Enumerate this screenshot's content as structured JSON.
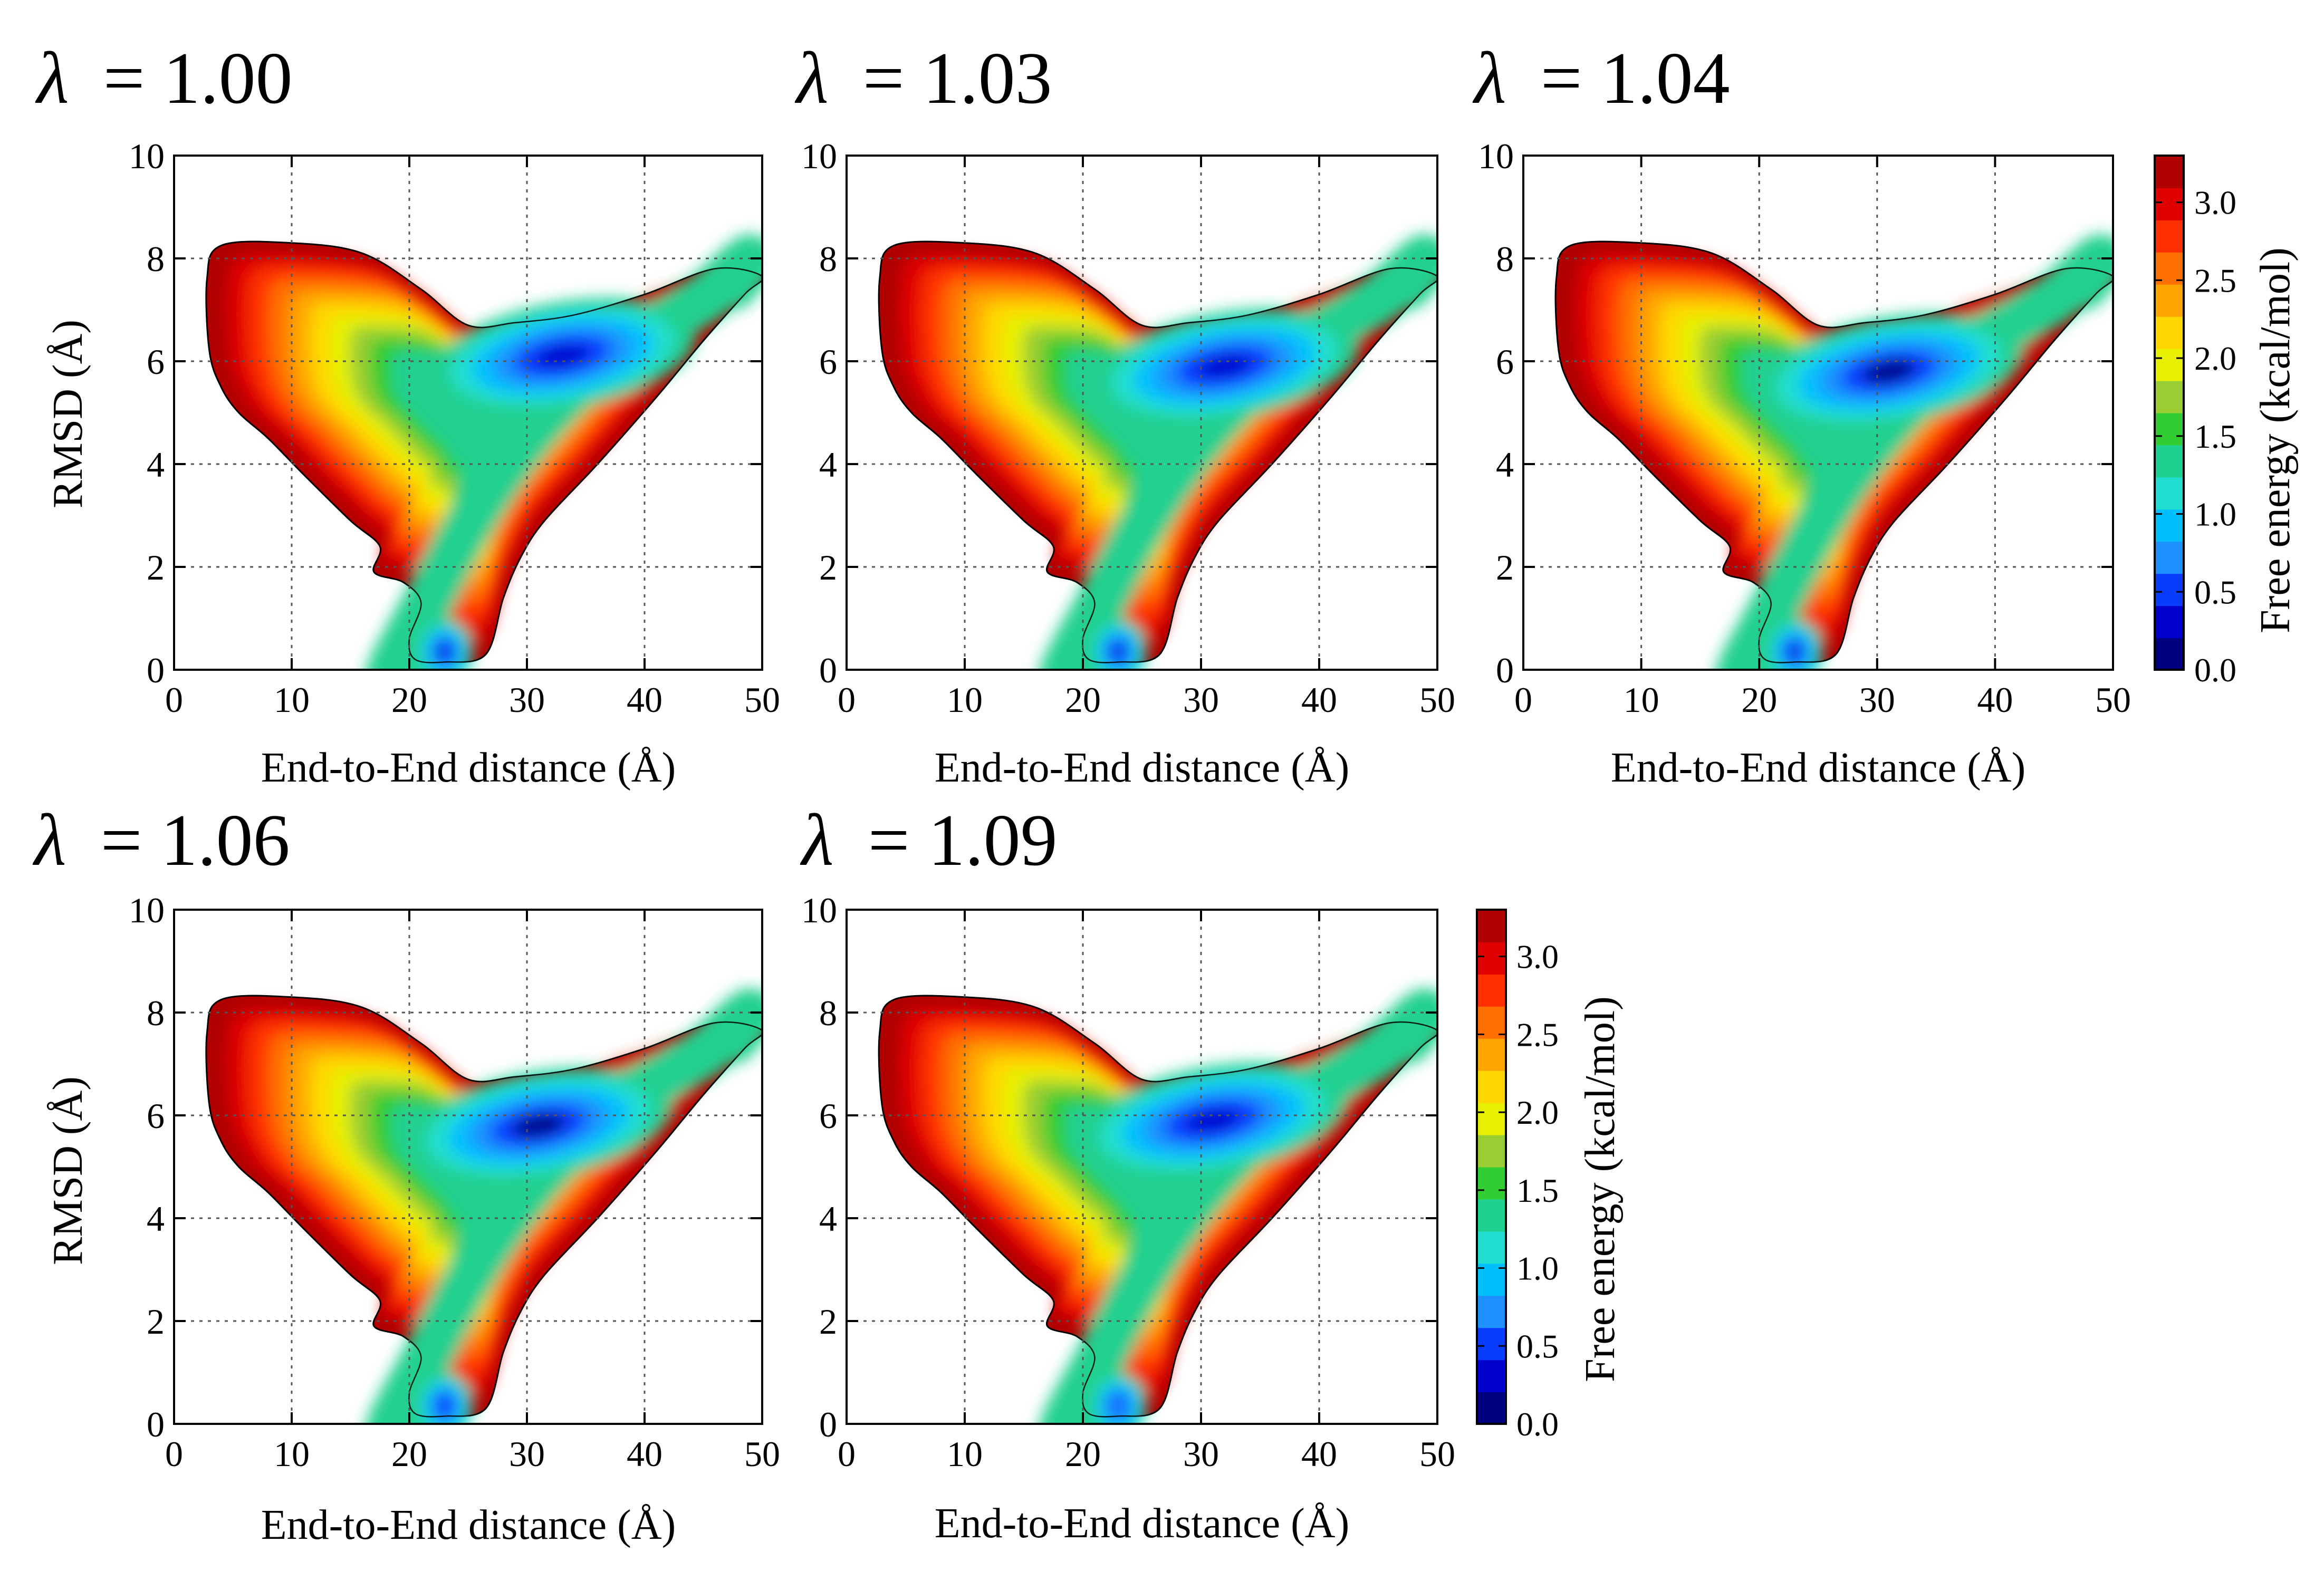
{
  "figure": {
    "colorbar": {
      "label": "Free energy (kcal/mol)",
      "range": [
        0.0,
        3.3
      ],
      "ticks": [
        "0.0",
        "0.5",
        "1.0",
        "1.5",
        "2.0",
        "2.5",
        "3.0"
      ],
      "colors": [
        "#000080",
        "#0000cd",
        "#0a3cff",
        "#1e90ff",
        "#00bfff",
        "#20dfd0",
        "#20d090",
        "#32cd32",
        "#9acd32",
        "#e6f000",
        "#ffd700",
        "#ffa500",
        "#ff7000",
        "#ff3000",
        "#e00000",
        "#b00000"
      ]
    }
  },
  "chart_data": [
    {
      "type": "heatmap",
      "title": "λ = 1.00",
      "lambda_symbol": "λ",
      "lambda_value": "= 1.00",
      "xlabel": "End-to-End distance (Å)",
      "ylabel": "RMSD (Å)",
      "xlim": [
        0,
        50
      ],
      "ylim": [
        0,
        10
      ],
      "xticks": [
        "0",
        "10",
        "20",
        "30",
        "40",
        "50"
      ],
      "yticks": [
        "0",
        "2",
        "4",
        "6",
        "8",
        "10"
      ],
      "minima": [
        {
          "x": 33,
          "y": 6.1,
          "depth": 0.3
        },
        {
          "x": 23,
          "y": 0.35,
          "depth": 0.3
        }
      ]
    },
    {
      "type": "heatmap",
      "title": "λ = 1.03",
      "lambda_symbol": "λ",
      "lambda_value": "= 1.03",
      "xlabel": "End-to-End distance (Å)",
      "ylabel": "",
      "xlim": [
        0,
        50
      ],
      "ylim": [
        0,
        10
      ],
      "xticks": [
        "0",
        "10",
        "20",
        "30",
        "40",
        "50"
      ],
      "yticks": [
        "0",
        "2",
        "4",
        "6",
        "8",
        "10"
      ],
      "minima": [
        {
          "x": 32,
          "y": 5.9,
          "depth": 0.3
        },
        {
          "x": 23,
          "y": 0.35,
          "depth": 0.3
        }
      ]
    },
    {
      "type": "heatmap",
      "title": "λ = 1.04",
      "lambda_symbol": "λ",
      "lambda_value": "= 1.04",
      "xlabel": "End-to-End distance (Å)",
      "ylabel": "",
      "xlim": [
        0,
        50
      ],
      "ylim": [
        0,
        10
      ],
      "xticks": [
        "0",
        "10",
        "20",
        "30",
        "40",
        "50"
      ],
      "yticks": [
        "0",
        "2",
        "4",
        "6",
        "8",
        "10"
      ],
      "minima": [
        {
          "x": 31,
          "y": 5.8,
          "depth": 0.2
        },
        {
          "x": 23,
          "y": 0.35,
          "depth": 0.4
        }
      ]
    },
    {
      "type": "heatmap",
      "title": "λ = 1.06",
      "lambda_symbol": "λ",
      "lambda_value": "= 1.06",
      "xlabel": "End-to-End distance (Å)",
      "ylabel": "RMSD (Å)",
      "xlim": [
        0,
        50
      ],
      "ylim": [
        0,
        10
      ],
      "xticks": [
        "0",
        "10",
        "20",
        "30",
        "40",
        "50"
      ],
      "yticks": [
        "0",
        "2",
        "4",
        "6",
        "8",
        "10"
      ],
      "minima": [
        {
          "x": 31,
          "y": 5.8,
          "depth": 0.2
        },
        {
          "x": 23,
          "y": 0.35,
          "depth": 0.5
        }
      ]
    },
    {
      "type": "heatmap",
      "title": "λ = 1.09",
      "lambda_symbol": "λ",
      "lambda_value": "= 1.09",
      "xlabel": "End-to-End distance (Å)",
      "ylabel": "",
      "xlim": [
        0,
        50
      ],
      "ylim": [
        0,
        10
      ],
      "xticks": [
        "0",
        "10",
        "20",
        "30",
        "40",
        "50"
      ],
      "yticks": [
        "0",
        "2",
        "4",
        "6",
        "8",
        "10"
      ],
      "minima": [
        {
          "x": 31,
          "y": 5.9,
          "depth": 0.3
        },
        {
          "x": 23,
          "y": 0.35,
          "depth": 0.7
        }
      ]
    }
  ]
}
